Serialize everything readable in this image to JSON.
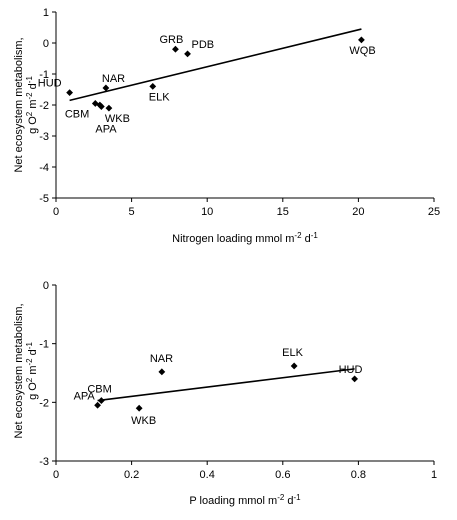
{
  "chart_data": [
    {
      "type": "scatter",
      "ylabel_line1": "Net ecosystem metabolism,",
      "ylabel_line2_parts": [
        "g O",
        "2",
        " m",
        "-2",
        " d",
        "-1"
      ],
      "xlabel_parts": [
        "Nitrogen loading mmol m",
        "-2",
        " d",
        "-1"
      ],
      "xlim": [
        0,
        25
      ],
      "ylim": [
        -5,
        1
      ],
      "xticks": [
        0,
        5,
        10,
        15,
        20,
        25
      ],
      "yticks": [
        -5,
        -4,
        -3,
        -2,
        -1,
        0,
        1
      ],
      "points": [
        {
          "label": "HUD",
          "x": 0.9,
          "y": -1.6
        },
        {
          "label": "NAR",
          "x": 3.3,
          "y": -1.45
        },
        {
          "label": "CBM",
          "x": 2.6,
          "y": -1.95
        },
        {
          "label": "",
          "x": 2.9,
          "y": -2.0
        },
        {
          "label": "WKB",
          "x": 3.5,
          "y": -2.1
        },
        {
          "label": "APA",
          "x": 3.0,
          "y": -2.05
        },
        {
          "label": "ELK",
          "x": 6.4,
          "y": -1.4
        },
        {
          "label": "GRB",
          "x": 7.9,
          "y": -0.2
        },
        {
          "label": "PDB",
          "x": 8.7,
          "y": -0.35
        },
        {
          "label": "WQB",
          "x": 20.2,
          "y": 0.1
        }
      ],
      "trendline": {
        "x": [
          0.9,
          20.2
        ],
        "y": [
          -1.85,
          0.45
        ]
      },
      "grid": false
    },
    {
      "type": "scatter",
      "ylabel_line1": "Net ecosystem metabolism,",
      "ylabel_line2_parts": [
        "g O",
        "2",
        " m",
        "-2",
        " d",
        "-1"
      ],
      "xlabel_parts": [
        "P loading mmol m",
        "-2",
        " d",
        "-1"
      ],
      "xlim": [
        0,
        1
      ],
      "ylim": [
        -3,
        0
      ],
      "xticks": [
        0,
        0.2,
        0.4,
        0.6,
        0.8,
        1
      ],
      "yticks": [
        -3,
        -2,
        -1,
        0
      ],
      "points": [
        {
          "label": "APA",
          "x": 0.11,
          "y": -2.05
        },
        {
          "label": "CBM",
          "x": 0.12,
          "y": -1.97
        },
        {
          "label": "WKB",
          "x": 0.22,
          "y": -2.1
        },
        {
          "label": "NAR",
          "x": 0.28,
          "y": -1.48
        },
        {
          "label": "ELK",
          "x": 0.63,
          "y": -1.38
        },
        {
          "label": "HUD",
          "x": 0.79,
          "y": -1.6
        }
      ],
      "trendline": {
        "x": [
          0.11,
          0.79
        ],
        "y": [
          -1.97,
          -1.43
        ]
      },
      "grid": false
    }
  ]
}
